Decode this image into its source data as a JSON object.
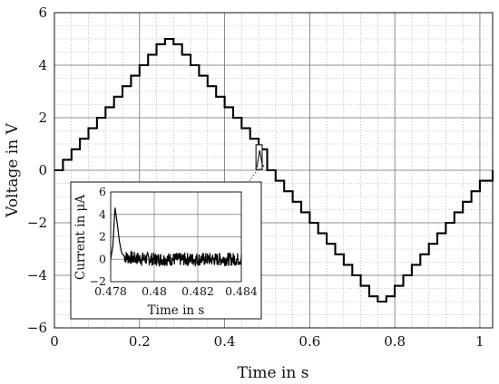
{
  "chart_data": [
    {
      "type": "line",
      "title": "",
      "xlabel": "Time in s",
      "ylabel": "Voltage in V",
      "xlim": [
        0,
        1.03
      ],
      "ylim": [
        -6,
        6
      ],
      "xticks": [
        0,
        0.2,
        0.4,
        0.6,
        0.8,
        1
      ],
      "xtick_labels": [
        "0",
        "0.2",
        "0.4",
        "0.6",
        "0.8",
        "1"
      ],
      "yticks": [
        -6,
        -4,
        -2,
        0,
        2,
        4,
        6
      ],
      "ytick_labels": [
        "−6",
        "−4",
        "−2",
        "0",
        "2",
        "4",
        "6"
      ],
      "grid": "major solid, minor dotted",
      "series": [
        {
          "color": "#000000",
          "style": "staircase",
          "x": [
            0,
            0.02,
            0.04,
            0.06,
            0.08,
            0.1,
            0.12,
            0.14,
            0.16,
            0.18,
            0.2,
            0.22,
            0.24,
            0.26,
            0.28,
            0.3,
            0.32,
            0.34,
            0.36,
            0.38,
            0.4,
            0.42,
            0.44,
            0.46,
            0.48,
            0.5,
            0.52,
            0.54,
            0.56,
            0.58,
            0.6,
            0.62,
            0.64,
            0.66,
            0.68,
            0.7,
            0.72,
            0.74,
            0.76,
            0.78,
            0.8,
            0.82,
            0.84,
            0.86,
            0.88,
            0.9,
            0.92,
            0.94,
            0.96,
            0.98,
            1.0,
            1.03
          ],
          "y": [
            0,
            0.4,
            0.8,
            1.2,
            1.6,
            2.0,
            2.4,
            2.8,
            3.2,
            3.6,
            4.0,
            4.4,
            4.8,
            5.0,
            4.8,
            4.4,
            4.0,
            3.6,
            3.2,
            2.8,
            2.4,
            2.0,
            1.6,
            1.2,
            0.8,
            0.0,
            -0.4,
            -0.8,
            -1.2,
            -1.6,
            -2.0,
            -2.4,
            -2.8,
            -3.2,
            -3.6,
            -4.0,
            -4.4,
            -4.8,
            -5.0,
            -4.8,
            -4.4,
            -4.0,
            -3.6,
            -3.2,
            -2.8,
            -2.4,
            -2.0,
            -1.6,
            -1.2,
            -0.8,
            -0.4,
            0.0
          ]
        }
      ],
      "highlight_region": {
        "x": [
          0.478,
          0.484
        ],
        "y": [
          0.1,
          0.9
        ]
      }
    },
    {
      "type": "line",
      "title": "",
      "xlabel": "Time in s",
      "ylabel": "Current in μA",
      "xlim": [
        0.478,
        0.484
      ],
      "ylim": [
        -2,
        6
      ],
      "xticks": [
        0.478,
        0.48,
        0.482,
        0.484
      ],
      "xtick_labels": [
        "0.478",
        "0.48",
        "0.482",
        "0.484"
      ],
      "yticks": [
        -2,
        0,
        2,
        4,
        6
      ],
      "ytick_labels": [
        "−2",
        "0",
        "2",
        "4",
        "6"
      ],
      "grid": "major solid",
      "series": [
        {
          "color": "#000000",
          "style": "noisy",
          "x": [
            0.478,
            0.4781,
            0.4782,
            0.4783,
            0.4784,
            0.4785,
            0.4786,
            0.4787,
            0.4788,
            0.479,
            0.4795,
            0.48,
            0.481,
            0.482,
            0.483,
            0.484
          ],
          "y": [
            0.0,
            1.2,
            4.6,
            3.2,
            1.6,
            0.6,
            0.3,
            0.2,
            0.15,
            0.1,
            0.05,
            0.0,
            0.0,
            0.0,
            0.0,
            0.0
          ],
          "noise_amplitude": 0.6
        }
      ]
    }
  ]
}
